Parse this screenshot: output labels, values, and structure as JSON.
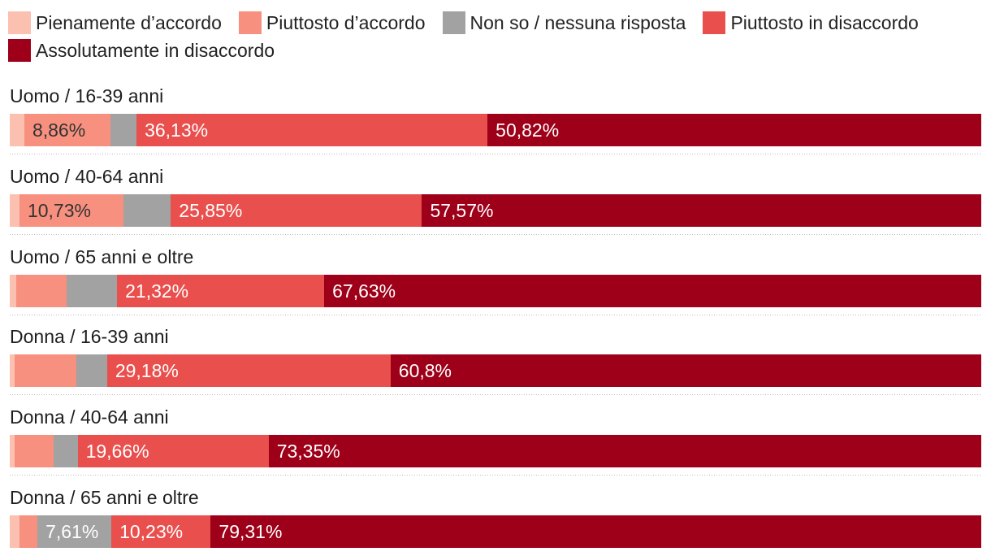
{
  "chart_data": {
    "type": "bar",
    "orientation": "horizontal",
    "stacked": true,
    "legend_position": "top",
    "unit": "%",
    "xlim": [
      0,
      100
    ],
    "categories": [
      "Uomo / 16-39 anni",
      "Uomo / 40-64 anni",
      "Uomo / 65 anni e oltre",
      "Donna / 16-39 anni",
      "Donna / 40-64 anni",
      "Donna / 65 anni e oltre"
    ],
    "series": [
      {
        "name": "Pienamente d’accordo",
        "color": "#fcc0b0",
        "values": [
          1.5,
          1.0,
          0.67,
          0.5,
          0.5,
          1.0
        ]
      },
      {
        "name": "Piuttosto d’accordo",
        "color": "#f7907f",
        "label_color": "#333333",
        "values": [
          8.86,
          10.73,
          5.19,
          6.35,
          4.0,
          1.85
        ]
      },
      {
        "name": "Non so / nessuna risposta",
        "color": "#a2a2a2",
        "label_color": "#ffffff",
        "values": [
          2.69,
          4.85,
          5.19,
          3.17,
          2.49,
          7.61
        ]
      },
      {
        "name": "Piuttosto in disaccordo",
        "color": "#e94f4d",
        "label_color": "#ffffff",
        "values": [
          36.13,
          25.85,
          21.32,
          29.18,
          19.66,
          10.23
        ]
      },
      {
        "name": "Assolutamente in disaccordo",
        "color": "#9e0019",
        "label_color": "#ffffff",
        "values": [
          50.82,
          57.57,
          67.63,
          60.8,
          73.35,
          79.31
        ]
      }
    ]
  }
}
